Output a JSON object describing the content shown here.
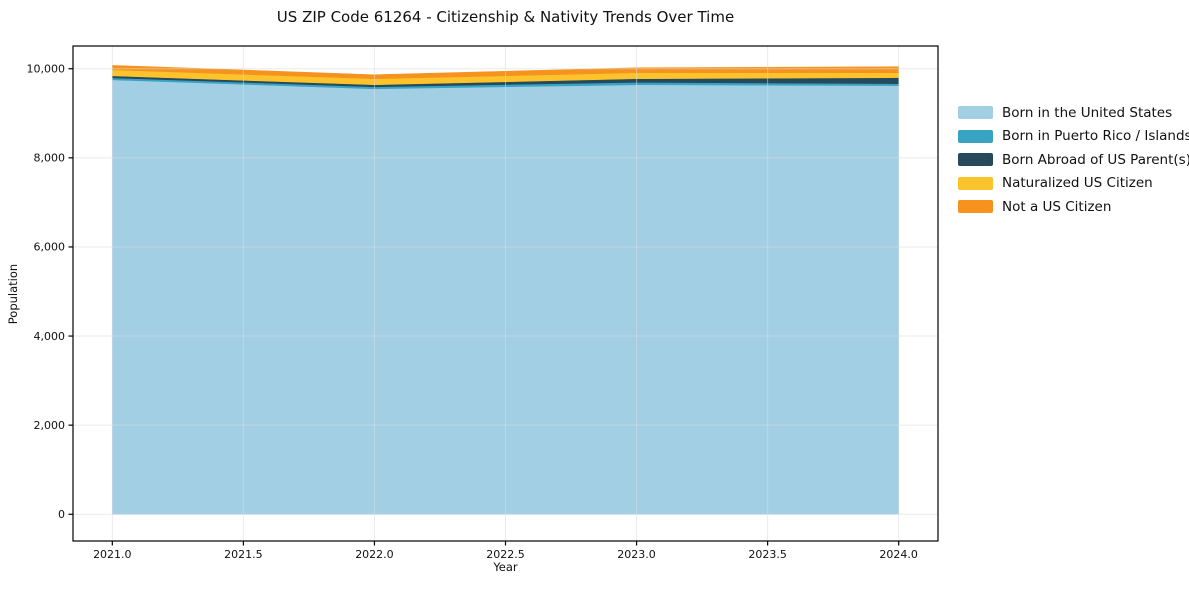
{
  "title": "US ZIP Code 61264 - Citizenship & Nativity Trends Over Time",
  "chart_data": {
    "type": "area",
    "stacked": true,
    "title": "US ZIP Code 61264 - Citizenship & Nativity Trends Over Time",
    "xlabel": "Year",
    "ylabel": "Population",
    "x": [
      2021,
      2022,
      2023,
      2024
    ],
    "series": [
      {
        "name": "Born in the United States",
        "color": "#A3CFE5",
        "values": [
          9750,
          9550,
          9640,
          9620
        ]
      },
      {
        "name": "Born in Puerto Rico / Islands",
        "color": "#38A3C3",
        "values": [
          45,
          45,
          55,
          45
        ]
      },
      {
        "name": "Born Abroad of US Parent(s)",
        "color": "#26495C",
        "values": [
          45,
          45,
          80,
          135
        ]
      },
      {
        "name": "Naturalized US Citizen",
        "color": "#FCC32D",
        "values": [
          135,
          135,
          135,
          110
        ]
      },
      {
        "name": "Not a US Citizen",
        "color": "#F6931E",
        "values": [
          100,
          90,
          110,
          135
        ]
      }
    ],
    "totals": [
      10075,
      9865,
      10020,
      10045
    ],
    "xticks": [
      2021.0,
      2021.5,
      2022.0,
      2022.5,
      2023.0,
      2023.5,
      2024.0
    ],
    "xtick_labels": [
      "2021.0",
      "2021.5",
      "2022.0",
      "2022.5",
      "2023.0",
      "2023.5",
      "2024.0"
    ],
    "yticks": [
      0,
      2000,
      4000,
      6000,
      8000,
      10000
    ],
    "ytick_labels": [
      "0",
      "2,000",
      "4,000",
      "6,000",
      "8,000",
      "10,000"
    ],
    "xlim": [
      2020.85,
      2024.15
    ],
    "ylim": [
      -600,
      10510
    ],
    "grid": true,
    "legend_position": "right-outside",
    "colors": {
      "spine": "#000000",
      "grid": "#dcdcdc",
      "tick": "#000000",
      "text": "#111111",
      "background": "#ffffff"
    }
  }
}
